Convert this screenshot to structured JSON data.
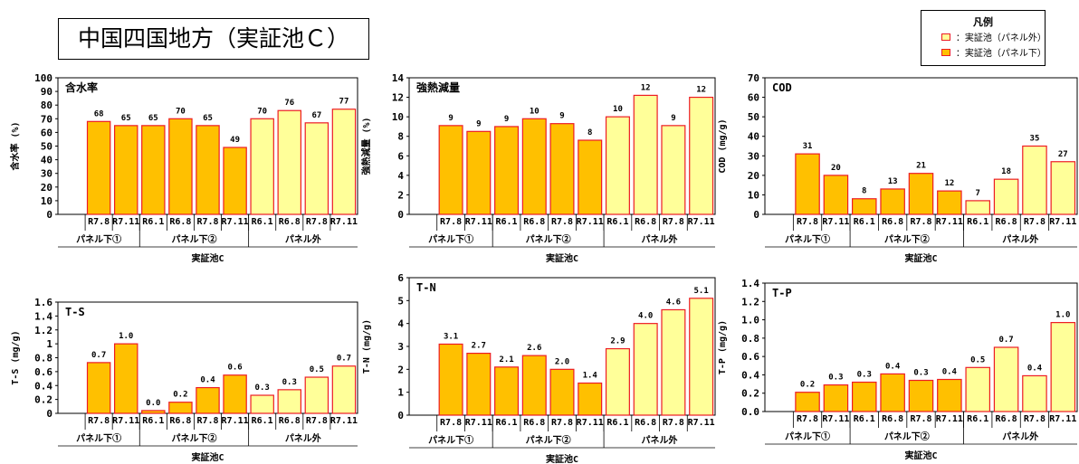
{
  "page": {
    "title": "中国四国地方（実証池Ｃ）"
  },
  "legend": {
    "title": "凡例",
    "items": [
      {
        "label": "：実証池（パネル外）",
        "color": "#FFFF99"
      },
      {
        "label": "：実証池（パネル下）",
        "color": "#FFC000"
      }
    ]
  },
  "colors": {
    "panel_under": "#FFC000",
    "panel_outside": "#FFFF99",
    "bar_border": "#ED1C24"
  },
  "chart_data": [
    {
      "type": "bar",
      "title": "含水率",
      "ylabel": "含水率 (%)",
      "yticks": [
        "0",
        "10",
        "20",
        "30",
        "40",
        "50",
        "60",
        "70",
        "80",
        "90",
        "100"
      ],
      "ylim": [
        0,
        100
      ],
      "categories": [
        "",
        "R7.8",
        "R7.11",
        "R6.1",
        "R6.8",
        "R7.8",
        "R7.11",
        "R6.1",
        "R6.8",
        "R7.8",
        "R7.11"
      ],
      "values": [
        null,
        68,
        65,
        65,
        70,
        65,
        49,
        70,
        76,
        67,
        77
      ],
      "labels": [
        "",
        "68",
        "65",
        "65",
        "70",
        "65",
        "49",
        "70",
        "76",
        "67",
        "77"
      ],
      "groups": [
        {
          "name": "パネル下①",
          "start": 0,
          "end": 3
        },
        {
          "name": "パネル下②",
          "start": 3,
          "end": 7
        },
        {
          "name": "パネル外",
          "start": 7,
          "end": 11
        }
      ],
      "group_colors": [
        "under",
        "under",
        "under",
        "under",
        "under",
        "under",
        "under",
        "outside",
        "outside",
        "outside",
        "outside"
      ],
      "xlabel": "実証池C"
    },
    {
      "type": "bar",
      "title": "強熱減量",
      "ylabel": "強熱減量 (%)",
      "yticks": [
        "0",
        "2",
        "4",
        "6",
        "8",
        "10",
        "12",
        "14"
      ],
      "ylim": [
        0,
        14
      ],
      "categories": [
        "",
        "R7.8",
        "R7.11",
        "R6.1",
        "R6.8",
        "R7.8",
        "R7.11",
        "R6.1",
        "R6.8",
        "R7.8",
        "R7.11"
      ],
      "values": [
        null,
        9.1,
        8.5,
        9.0,
        9.8,
        9.3,
        7.6,
        10.0,
        12.2,
        9.1,
        12.0
      ],
      "labels": [
        "",
        "9",
        "9",
        "9",
        "10",
        "9",
        "8",
        "10",
        "12",
        "9",
        "12"
      ],
      "groups": [
        {
          "name": "パネル下①",
          "start": 0,
          "end": 3
        },
        {
          "name": "パネル下②",
          "start": 3,
          "end": 7
        },
        {
          "name": "パネル外",
          "start": 7,
          "end": 11
        }
      ],
      "group_colors": [
        "under",
        "under",
        "under",
        "under",
        "under",
        "under",
        "under",
        "outside",
        "outside",
        "outside",
        "outside"
      ],
      "xlabel": "実証池C"
    },
    {
      "type": "bar",
      "title": "COD",
      "ylabel": "COD (mg/g)",
      "yticks": [
        "0",
        "10",
        "20",
        "30",
        "40",
        "50",
        "60",
        "70"
      ],
      "ylim": [
        0,
        70
      ],
      "categories": [
        "",
        "R7.8",
        "R7.11",
        "R6.1",
        "R6.8",
        "R7.8",
        "R7.11",
        "R6.1",
        "R6.8",
        "R7.8",
        "R7.11"
      ],
      "values": [
        null,
        31,
        20,
        8,
        13,
        21,
        12,
        7,
        18,
        35,
        27
      ],
      "labels": [
        "",
        "31",
        "20",
        "8",
        "13",
        "21",
        "12",
        "7",
        "18",
        "35",
        "27"
      ],
      "groups": [
        {
          "name": "パネル下①",
          "start": 0,
          "end": 3
        },
        {
          "name": "パネル下②",
          "start": 3,
          "end": 7
        },
        {
          "name": "パネル外",
          "start": 7,
          "end": 11
        }
      ],
      "group_colors": [
        "under",
        "under",
        "under",
        "under",
        "under",
        "under",
        "under",
        "outside",
        "outside",
        "outside",
        "outside"
      ],
      "xlabel": "実証池C"
    },
    {
      "type": "bar",
      "title": "T-S",
      "ylabel": "T-S (mg/g)",
      "yticks": [
        "0",
        "0.2",
        "0.4",
        "0.6",
        "0.8",
        "1",
        "1.2",
        "1.4",
        "1.6"
      ],
      "ylim": [
        0,
        1.6
      ],
      "categories": [
        "",
        "R7.8",
        "R7.11",
        "R6.1",
        "R6.8",
        "R7.8",
        "R7.11",
        "R6.1",
        "R6.8",
        "R7.8",
        "R7.11"
      ],
      "values": [
        null,
        0.73,
        1.0,
        0.04,
        0.16,
        0.37,
        0.55,
        0.26,
        0.34,
        0.52,
        0.68
      ],
      "labels": [
        "",
        "0.7",
        "1.0",
        "0.0",
        "0.2",
        "0.4",
        "0.6",
        "0.3",
        "0.3",
        "0.5",
        "0.7"
      ],
      "groups": [
        {
          "name": "パネル下①",
          "start": 0,
          "end": 3
        },
        {
          "name": "パネル下②",
          "start": 3,
          "end": 7
        },
        {
          "name": "パネル外",
          "start": 7,
          "end": 11
        }
      ],
      "group_colors": [
        "under",
        "under",
        "under",
        "under",
        "under",
        "under",
        "under",
        "outside",
        "outside",
        "outside",
        "outside"
      ],
      "xlabel": "実証池C"
    },
    {
      "type": "bar",
      "title": "T-N",
      "ylabel": "T-N (mg/g)",
      "yticks": [
        "0",
        "1",
        "2",
        "3",
        "4",
        "5",
        "6"
      ],
      "ylim": [
        0,
        6
      ],
      "categories": [
        "",
        "R7.8",
        "R7.11",
        "R6.1",
        "R6.8",
        "R7.8",
        "R7.11",
        "R6.1",
        "R6.8",
        "R7.8",
        "R7.11"
      ],
      "values": [
        null,
        3.1,
        2.7,
        2.1,
        2.6,
        2.0,
        1.4,
        2.9,
        4.0,
        4.6,
        5.1
      ],
      "labels": [
        "",
        "3.1",
        "2.7",
        "2.1",
        "2.6",
        "2.0",
        "1.4",
        "2.9",
        "4.0",
        "4.6",
        "5.1"
      ],
      "groups": [
        {
          "name": "パネル下①",
          "start": 0,
          "end": 3
        },
        {
          "name": "パネル下②",
          "start": 3,
          "end": 7
        },
        {
          "name": "パネル外",
          "start": 7,
          "end": 11
        }
      ],
      "group_colors": [
        "under",
        "under",
        "under",
        "under",
        "under",
        "under",
        "under",
        "outside",
        "outside",
        "outside",
        "outside"
      ],
      "xlabel": "実証池C"
    },
    {
      "type": "bar",
      "title": "T-P",
      "ylabel": "T-P (mg/g)",
      "yticks": [
        "0.0",
        "0.2",
        "0.4",
        "0.6",
        "0.8",
        "1.0",
        "1.2",
        "1.4"
      ],
      "ylim": [
        0,
        1.4
      ],
      "categories": [
        "",
        "R7.8",
        "R7.11",
        "R6.1",
        "R6.8",
        "R7.8",
        "R7.11",
        "R6.1",
        "R6.8",
        "R7.8",
        "R7.11"
      ],
      "values": [
        null,
        0.21,
        0.29,
        0.32,
        0.41,
        0.34,
        0.35,
        0.48,
        0.7,
        0.39,
        0.97
      ],
      "labels": [
        "",
        "0.2",
        "0.3",
        "0.3",
        "0.4",
        "0.3",
        "0.4",
        "0.5",
        "0.7",
        "0.4",
        "1.0"
      ],
      "groups": [
        {
          "name": "パネル下①",
          "start": 0,
          "end": 3
        },
        {
          "name": "パネル下②",
          "start": 3,
          "end": 7
        },
        {
          "name": "パネル外",
          "start": 7,
          "end": 11
        }
      ],
      "group_colors": [
        "under",
        "under",
        "under",
        "under",
        "under",
        "under",
        "under",
        "outside",
        "outside",
        "outside",
        "outside"
      ],
      "xlabel": "実証池C"
    }
  ]
}
